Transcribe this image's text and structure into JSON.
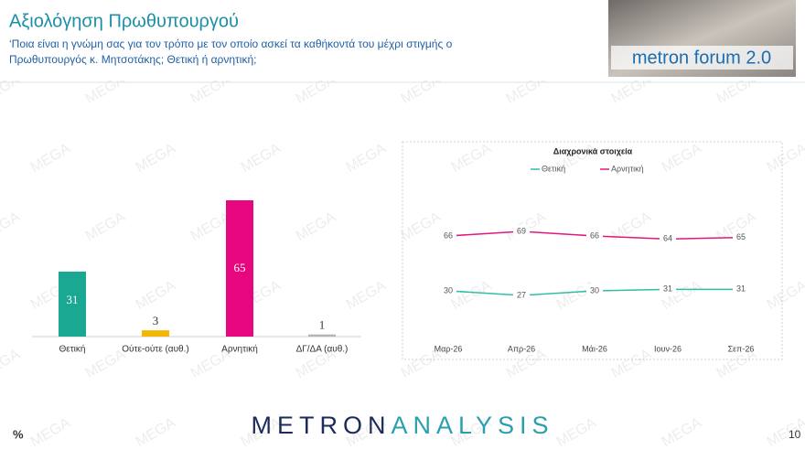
{
  "header": {
    "title": "Αξιολόγηση Πρωθυπουργού",
    "question_lines": [
      "‘Ποια είναι η γνώμη σας για τον τρόπο με τον οποίο ασκεί τα καθήκοντά του μέχρι στιγμής ο",
      "Πρωθυπουργός κ. Μητσοτάκης; Θετική ή αρνητική;"
    ],
    "logo": "metron forum 2.0"
  },
  "watermark": "MEGA",
  "chart_data": [
    {
      "type": "bar",
      "categories": [
        "Θετική",
        "Ούτε-ούτε (αυθ.)",
        "Αρνητική",
        "ΔΓ/ΔΑ (αυθ.)"
      ],
      "values": [
        31,
        3,
        65,
        1
      ],
      "colors": [
        "#1aa892",
        "#f2b705",
        "#e6077e",
        "#b3b3b3"
      ]
    },
    {
      "type": "line",
      "title": "Διαχρονικά στοιχεία",
      "categories": [
        "Μαρ-26",
        "Απρ-26",
        "Μάι-26",
        "Ιουν-26",
        "Σεπ-26"
      ],
      "series": [
        {
          "name": "Θετική",
          "color": "#2dc0a5",
          "values": [
            30,
            27,
            30,
            31,
            31
          ]
        },
        {
          "name": "Αρνητική",
          "color": "#e0197f",
          "values": [
            66,
            69,
            66,
            64,
            65
          ]
        }
      ],
      "legend": "top"
    }
  ],
  "footer": {
    "unit": "%",
    "brand": [
      "METRON",
      "ANALYSIS"
    ],
    "page": "10"
  }
}
